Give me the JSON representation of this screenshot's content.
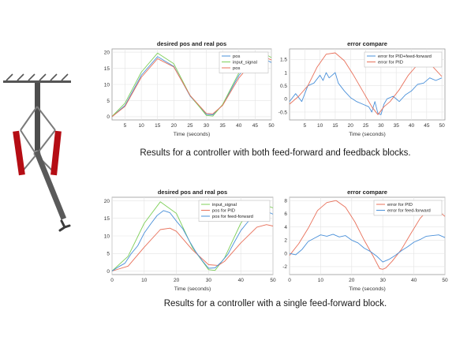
{
  "captions": {
    "top": "Results for a controller with both feed-forward and feedback blocks.",
    "bottom": "Results for a controller with a single feed-forward block."
  },
  "chart_data": [
    {
      "id": "c1",
      "type": "line",
      "title": "desired pos and real pos",
      "xlabel": "Time (seconds)",
      "xlim": [
        1,
        50
      ],
      "ylim": [
        -1,
        21
      ],
      "xticks": [
        5,
        10,
        15,
        20,
        25,
        30,
        35,
        40,
        45,
        50
      ],
      "yticks": [
        0,
        5,
        10,
        15,
        20
      ],
      "legend": "top-right",
      "grid": true,
      "series": [
        {
          "name": "pos",
          "color": "#4a90d9",
          "x": [
            1,
            5,
            10,
            15,
            20,
            25,
            30,
            32,
            35,
            40,
            45,
            48,
            50
          ],
          "y": [
            0,
            3.5,
            12.8,
            18.6,
            15.6,
            6.4,
            0.7,
            0.6,
            3.7,
            12.8,
            18.6,
            17.8,
            16.8
          ]
        },
        {
          "name": "input_signal",
          "color": "#7fcf5a",
          "x": [
            1,
            5,
            10,
            15,
            20,
            25,
            30,
            32,
            35,
            40,
            45,
            48,
            50
          ],
          "y": [
            0.1,
            4.2,
            13.8,
            19.7,
            16.4,
            6.6,
            0.4,
            0.2,
            3.8,
            13.6,
            19.6,
            19.5,
            18.3
          ]
        },
        {
          "name": "pos",
          "color": "#e8705a",
          "x": [
            1,
            5,
            10,
            15,
            20,
            25,
            30,
            32,
            35,
            40,
            45,
            48,
            50
          ],
          "y": [
            0,
            3.2,
            12.2,
            18.0,
            15.4,
            6.6,
            1.0,
            0.9,
            3.5,
            12.0,
            17.9,
            18.4,
            17.6
          ]
        }
      ]
    },
    {
      "id": "c2",
      "type": "line",
      "title": "error compare",
      "xlabel": "Time (seconds)",
      "xlim": [
        0,
        51
      ],
      "ylim": [
        -0.8,
        1.9
      ],
      "xticks": [
        5,
        10,
        15,
        20,
        25,
        30,
        35,
        40,
        45,
        50
      ],
      "yticks": [
        -0.5,
        0,
        0.5,
        1,
        1.5
      ],
      "legend": "top-right",
      "grid": true,
      "series": [
        {
          "name": "error for PID+feed-forward",
          "color": "#4a90d9",
          "x": [
            0,
            2,
            4,
            6,
            8,
            10,
            11,
            12,
            13,
            14,
            15,
            16,
            18,
            20,
            22,
            24,
            26,
            27,
            28,
            29,
            30,
            31,
            32,
            34,
            36,
            38,
            40,
            42,
            44,
            46,
            48,
            50
          ],
          "y": [
            -0.1,
            0.2,
            -0.1,
            0.5,
            0.6,
            0.9,
            0.7,
            1.0,
            0.8,
            0.9,
            1.0,
            0.6,
            0.3,
            0.05,
            -0.1,
            -0.2,
            -0.3,
            -0.5,
            -0.1,
            -0.55,
            -0.6,
            -0.2,
            0.0,
            0.1,
            -0.1,
            0.15,
            0.3,
            0.55,
            0.6,
            0.8,
            0.7,
            0.8
          ]
        },
        {
          "name": "error for PID",
          "color": "#e8705a",
          "x": [
            0,
            3,
            6,
            9,
            12,
            15,
            18,
            21,
            24,
            27,
            29,
            30,
            31,
            33,
            36,
            39,
            42,
            45,
            46,
            48,
            50
          ],
          "y": [
            -0.2,
            0.1,
            0.5,
            1.2,
            1.7,
            1.75,
            1.45,
            0.9,
            0.3,
            -0.3,
            -0.6,
            -0.45,
            -0.3,
            -0.1,
            0.35,
            0.9,
            1.3,
            1.4,
            1.35,
            1.1,
            0.85
          ]
        }
      ]
    },
    {
      "id": "c3",
      "type": "line",
      "title": "desired pos and real pos",
      "xlabel": "Time (seconds)",
      "xlim": [
        0,
        50
      ],
      "ylim": [
        -1,
        21
      ],
      "xticks": [
        0,
        10,
        20,
        30,
        40,
        50
      ],
      "yticks": [
        0,
        5,
        10,
        15,
        20
      ],
      "legend": "top-right",
      "grid": true,
      "series": [
        {
          "name": "input_signal",
          "color": "#7fcf5a",
          "x": [
            0,
            5,
            10,
            15,
            20,
            25,
            30,
            32,
            35,
            40,
            45,
            50
          ],
          "y": [
            0,
            4.2,
            13.6,
            19.7,
            16.4,
            6.6,
            0.4,
            0.2,
            3.8,
            13.6,
            19.6,
            18.0
          ]
        },
        {
          "name": "pos for PID",
          "color": "#e8705a",
          "x": [
            0,
            5,
            10,
            15,
            18,
            20,
            25,
            30,
            33,
            35,
            40,
            45,
            48,
            50
          ],
          "y": [
            0,
            1.4,
            6.8,
            11.8,
            12.2,
            11.3,
            6.0,
            1.8,
            1.6,
            2.8,
            8.0,
            12.5,
            13.2,
            12.8
          ]
        },
        {
          "name": "pos for feed-forward",
          "color": "#4a90d9",
          "x": [
            0,
            2,
            4,
            6,
            8,
            10,
            12,
            14,
            16,
            18,
            20,
            22,
            24,
            26,
            28,
            30,
            32,
            34,
            36,
            38,
            40,
            42,
            44,
            46,
            48,
            50
          ],
          "y": [
            0,
            1.2,
            2.2,
            5.0,
            7.2,
            10.8,
            13.4,
            15.8,
            17.2,
            16.6,
            14.2,
            12.0,
            8.6,
            5.5,
            3.0,
            0.8,
            0.9,
            2.6,
            4.8,
            8.2,
            11.5,
            13.8,
            15.6,
            16.6,
            17.0,
            16.2
          ]
        }
      ]
    },
    {
      "id": "c4",
      "type": "line",
      "title": "error compare",
      "xlabel": "Time (seconds)",
      "xlim": [
        0,
        50
      ],
      "ylim": [
        -3.2,
        8.5
      ],
      "xticks": [
        0,
        10,
        20,
        30,
        40,
        50
      ],
      "yticks": [
        -2,
        0,
        2,
        4,
        6,
        8
      ],
      "legend": "top-right",
      "grid": true,
      "series": [
        {
          "name": "error for PID",
          "color": "#e8705a",
          "x": [
            0,
            3,
            6,
            9,
            12,
            15,
            18,
            21,
            24,
            27,
            29,
            30,
            31,
            33,
            36,
            39,
            42,
            45,
            46,
            48,
            50
          ],
          "y": [
            -0.3,
            1.5,
            3.8,
            6.5,
            7.7,
            8.0,
            7.0,
            4.8,
            2.0,
            -0.5,
            -2.3,
            -2.4,
            -2.2,
            -1.2,
            0.6,
            3.0,
            5.3,
            6.8,
            7.0,
            6.4,
            5.6
          ]
        },
        {
          "name": "error for feed-forward",
          "color": "#4a90d9",
          "x": [
            0,
            2,
            4,
            6,
            8,
            10,
            12,
            14,
            16,
            18,
            20,
            22,
            24,
            26,
            28,
            30,
            32,
            34,
            36,
            38,
            40,
            42,
            44,
            46,
            48,
            50
          ],
          "y": [
            0,
            -0.2,
            0.6,
            1.8,
            2.3,
            2.8,
            2.6,
            2.9,
            2.5,
            2.7,
            2.0,
            1.6,
            0.8,
            0.3,
            -0.4,
            -1.3,
            -0.9,
            -0.3,
            0.4,
            1.0,
            1.7,
            2.1,
            2.6,
            2.7,
            2.8,
            2.4
          ]
        }
      ]
    }
  ]
}
